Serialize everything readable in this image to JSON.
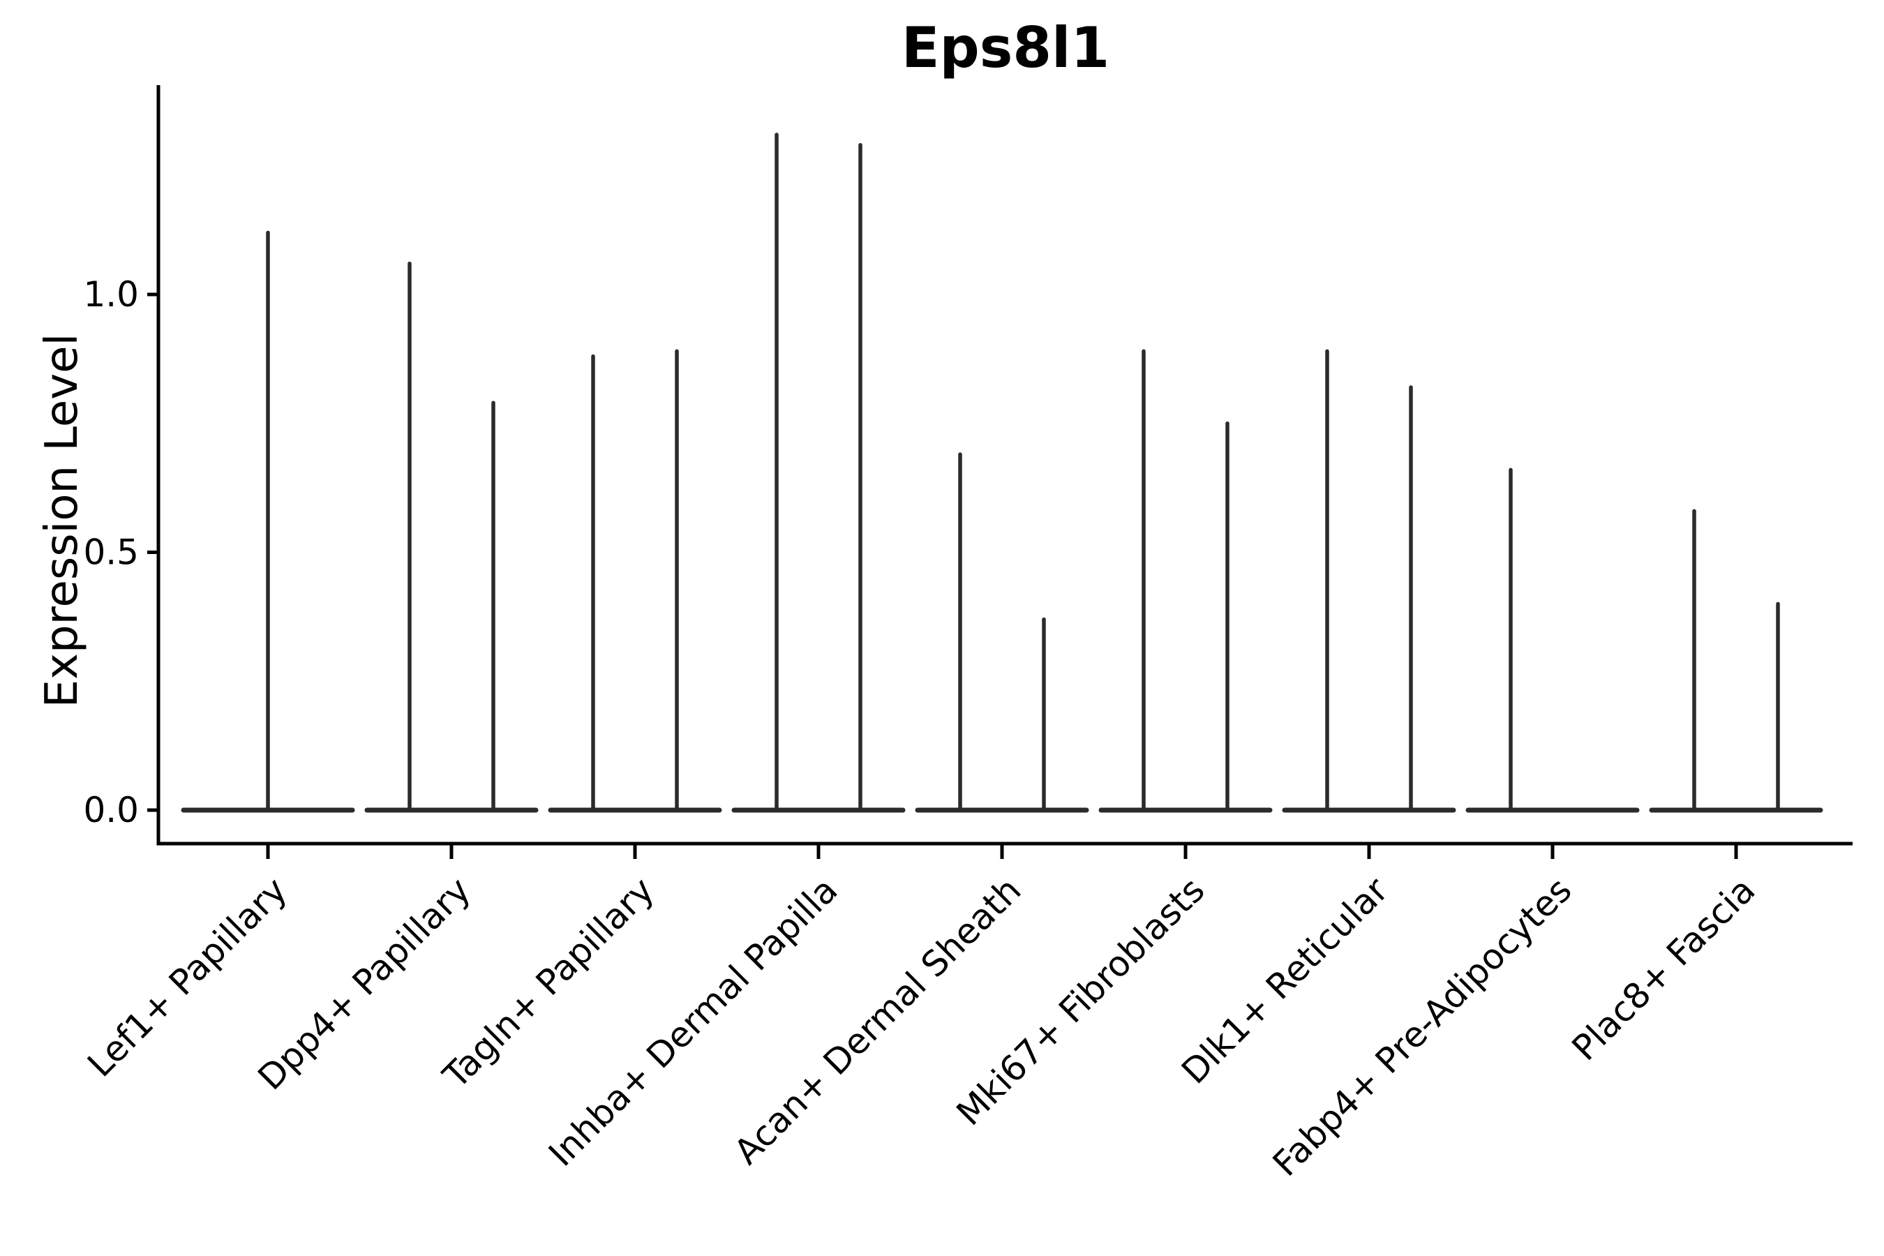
{
  "chart_data": {
    "type": "violin",
    "title": "Eps8l1",
    "ylabel": "Expression Level",
    "xlabel": "",
    "grid": false,
    "legend": null,
    "ylim": [
      -0.07,
      1.41
    ],
    "yticks": [
      {
        "label": "0.0",
        "value": 0.0
      },
      {
        "label": "0.5",
        "value": 0.5
      },
      {
        "label": "1.0",
        "value": 1.0
      }
    ],
    "violin_color": "#2b2b2b",
    "axis_color": "#000000",
    "description": "Violin plot of gene expression; each category shows flat violin bodies at 0 with thin spikes reaching the maximum expression value.",
    "categories": [
      {
        "label": "Lef1+ Papillary",
        "spikes": [
          {
            "pos": "center",
            "max": 1.12
          }
        ]
      },
      {
        "label": "Dpp4+ Papillary",
        "spikes": [
          {
            "pos": "left",
            "max": 1.06
          },
          {
            "pos": "right",
            "max": 0.79
          }
        ]
      },
      {
        "label": "Tagln+ Papillary",
        "spikes": [
          {
            "pos": "left",
            "max": 0.88
          },
          {
            "pos": "right",
            "max": 0.89
          }
        ]
      },
      {
        "label": "Inhba+ Dermal Papilla",
        "spikes": [
          {
            "pos": "left",
            "max": 1.31
          },
          {
            "pos": "right",
            "max": 1.29
          }
        ]
      },
      {
        "label": "Acan+ Dermal Sheath",
        "spikes": [
          {
            "pos": "left",
            "max": 0.69
          },
          {
            "pos": "right",
            "max": 0.37
          }
        ]
      },
      {
        "label": "Mki67+ Fibroblasts",
        "spikes": [
          {
            "pos": "left",
            "max": 0.89
          },
          {
            "pos": "right",
            "max": 0.75
          }
        ]
      },
      {
        "label": "Dlk1+ Reticular",
        "spikes": [
          {
            "pos": "left",
            "max": 0.89
          },
          {
            "pos": "right",
            "max": 0.82
          }
        ]
      },
      {
        "label": "Fabp4+ Pre-Adipocytes",
        "spikes": [
          {
            "pos": "left",
            "max": 0.66
          }
        ]
      },
      {
        "label": "Plac8+ Fascia",
        "spikes": [
          {
            "pos": "left",
            "max": 0.58
          },
          {
            "pos": "right",
            "max": 0.4
          }
        ]
      }
    ]
  }
}
